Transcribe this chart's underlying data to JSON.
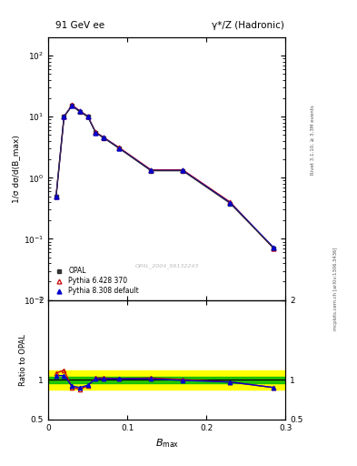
{
  "title_left": "91 GeV ee",
  "title_right": "γ*/Z (Hadronic)",
  "right_label_top": "Rivet 3.1.10, ≥ 3.3M events",
  "right_label_bot": "mcplots.cern.ch [arXiv:1306.3436]",
  "watermark": "OPAL_2004_S6132243",
  "ylabel_main": "1/σ dσ/d(B_max)",
  "ylabel_ratio": "Ratio to OPAL",
  "xlabel": "B_max",
  "opal_x": [
    0.01,
    0.02,
    0.03,
    0.04,
    0.05,
    0.06,
    0.07,
    0.09,
    0.13,
    0.17,
    0.23,
    0.285
  ],
  "opal_y": [
    0.5,
    10.0,
    15.0,
    12.0,
    10.0,
    5.5,
    4.5,
    3.0,
    1.3,
    1.3,
    0.38,
    0.07
  ],
  "pythia6_x": [
    0.01,
    0.02,
    0.03,
    0.04,
    0.05,
    0.06,
    0.07,
    0.09,
    0.13,
    0.17,
    0.23,
    0.285
  ],
  "pythia6_y": [
    0.5,
    10.0,
    15.5,
    12.5,
    10.2,
    5.6,
    4.6,
    3.1,
    1.35,
    1.35,
    0.4,
    0.07
  ],
  "pythia8_x": [
    0.01,
    0.02,
    0.03,
    0.04,
    0.05,
    0.06,
    0.07,
    0.09,
    0.13,
    0.17,
    0.23,
    0.285
  ],
  "pythia8_y": [
    0.5,
    10.1,
    15.2,
    12.3,
    10.1,
    5.5,
    4.55,
    3.05,
    1.32,
    1.32,
    0.39,
    0.072
  ],
  "ratio_pythia6": [
    1.08,
    1.12,
    0.9,
    0.88,
    0.92,
    1.02,
    1.02,
    1.01,
    1.02,
    1.0,
    0.97,
    0.9
  ],
  "ratio_pythia8": [
    1.05,
    1.05,
    0.92,
    0.9,
    0.93,
    1.01,
    1.01,
    1.01,
    1.01,
    0.99,
    0.97,
    0.9
  ],
  "yellow_lo": 0.88,
  "yellow_hi": 1.12,
  "green_lo": 0.96,
  "green_hi": 1.04,
  "opal_color": "#333333",
  "pythia6_color": "#cc0000",
  "pythia8_color": "#0000cc",
  "yellow_color": "#ffff00",
  "green_color": "#00bb00",
  "xlim": [
    0.0,
    0.3
  ],
  "ylim_main": [
    0.01,
    200
  ],
  "ylim_ratio": [
    0.5,
    2.0
  ],
  "bg_color": "#ffffff"
}
